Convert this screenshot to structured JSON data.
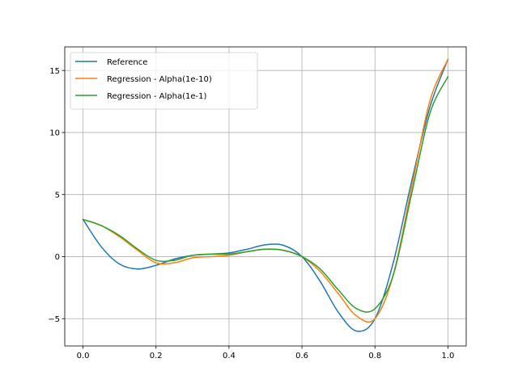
{
  "chart_data": {
    "type": "line",
    "title": "",
    "xlabel": "",
    "ylabel": "",
    "xlim": [
      -0.05,
      1.05
    ],
    "ylim": [
      -7.2,
      16.9
    ],
    "xticks": [
      0.0,
      0.2,
      0.4,
      0.6,
      0.8,
      1.0
    ],
    "xtick_labels": [
      "0.0",
      "0.2",
      "0.4",
      "0.6",
      "0.8",
      "1.0"
    ],
    "yticks": [
      -5,
      0,
      5,
      10,
      15
    ],
    "ytick_labels": [
      "−5",
      "0",
      "5",
      "10",
      "15"
    ],
    "grid": true,
    "legend_position": "upper-left",
    "x": [
      0.0,
      0.05,
      0.1,
      0.15,
      0.2,
      0.25,
      0.3,
      0.35,
      0.4,
      0.45,
      0.5,
      0.55,
      0.6,
      0.65,
      0.7,
      0.75,
      0.8,
      0.85,
      0.9,
      0.95,
      1.0
    ],
    "series": [
      {
        "name": "Reference",
        "color": "#1f77b4",
        "values": [
          3.0,
          0.8,
          -0.6,
          -1.0,
          -0.7,
          -0.2,
          0.1,
          0.2,
          0.3,
          0.6,
          0.95,
          0.9,
          0.0,
          -2.0,
          -4.5,
          -6.0,
          -5.0,
          -0.5,
          6.0,
          12.0,
          15.9
        ]
      },
      {
        "name": "Regression - Alpha(1e-10)",
        "color": "#ff7f0e",
        "values": [
          3.0,
          2.5,
          1.6,
          0.5,
          -0.5,
          -0.5,
          -0.1,
          0.0,
          0.1,
          0.4,
          0.6,
          0.5,
          0.0,
          -1.2,
          -3.0,
          -4.8,
          -5.0,
          -1.5,
          5.5,
          12.5,
          15.9
        ]
      },
      {
        "name": "Regression - Alpha(1e-1)",
        "color": "#2ca02c",
        "values": [
          3.0,
          2.5,
          1.7,
          0.6,
          -0.3,
          -0.3,
          0.1,
          0.2,
          0.2,
          0.4,
          0.6,
          0.5,
          0.0,
          -1.0,
          -2.7,
          -4.2,
          -4.2,
          -1.5,
          5.0,
          11.5,
          14.5
        ]
      }
    ]
  }
}
